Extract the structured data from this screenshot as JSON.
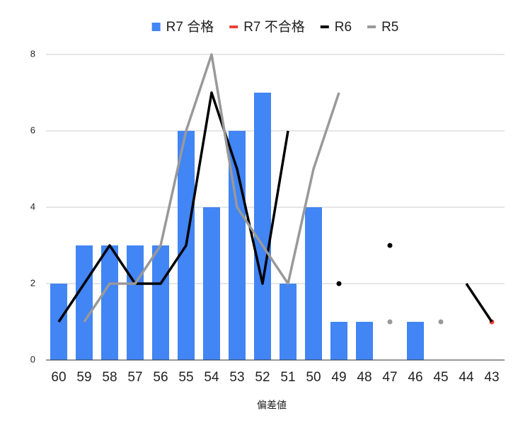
{
  "chart_data": {
    "type": "combo",
    "categories": [
      "60",
      "59",
      "58",
      "57",
      "56",
      "55",
      "54",
      "53",
      "52",
      "51",
      "50",
      "49",
      "48",
      "47",
      "46",
      "45",
      "44",
      "43"
    ],
    "x_label": "偏差値",
    "series": [
      {
        "name": "R7 合格",
        "type": "bar",
        "color": "#4285f4",
        "values": [
          2,
          3,
          3,
          3,
          3,
          6,
          4,
          6,
          7,
          2,
          4,
          1,
          1,
          null,
          1,
          null,
          null,
          null
        ]
      },
      {
        "name": "R7 不合格",
        "type": "line",
        "color": "#ea4335",
        "values": [
          null,
          null,
          null,
          null,
          null,
          null,
          null,
          null,
          null,
          null,
          null,
          null,
          null,
          null,
          null,
          null,
          null,
          1
        ]
      },
      {
        "name": "R6",
        "type": "line",
        "color": "#000000",
        "values": [
          1,
          2,
          3,
          2,
          2,
          3,
          7,
          5,
          2,
          6,
          null,
          2,
          null,
          3,
          null,
          null,
          2,
          1
        ]
      },
      {
        "name": "R5",
        "type": "line",
        "color": "#999999",
        "values": [
          null,
          1,
          2,
          2,
          3,
          6,
          8,
          4,
          3,
          2,
          5,
          7,
          null,
          1,
          null,
          1,
          null,
          null
        ]
      }
    ],
    "ylim": [
      0,
      8
    ],
    "yticks": [
      0,
      2,
      4,
      6,
      8
    ],
    "grid": true,
    "legend": "top"
  }
}
